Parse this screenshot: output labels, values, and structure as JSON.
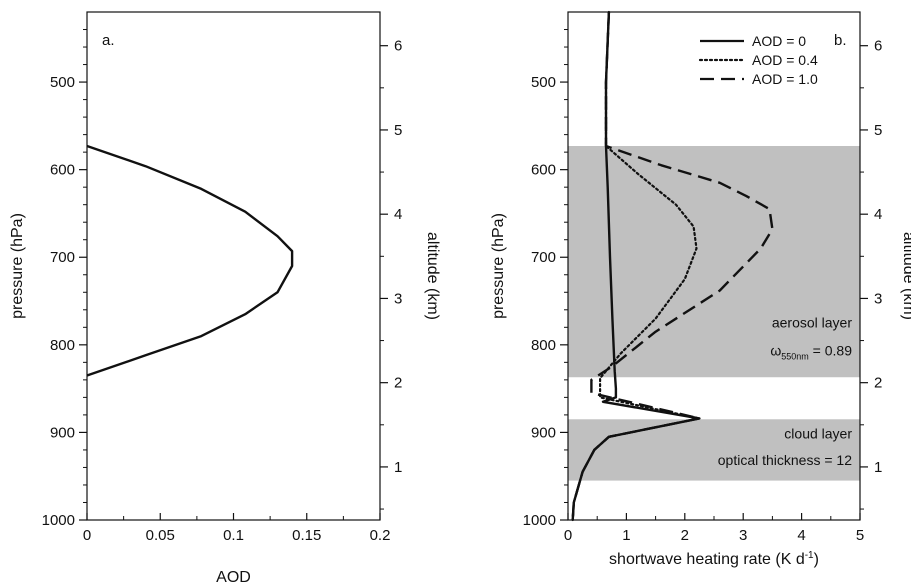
{
  "chart_data": [
    {
      "type": "line",
      "panel_label": "a.",
      "xlabel": "AOD",
      "ylabel": "pressure (hPa)",
      "y2label": "altitude (km)",
      "xlim": [
        0,
        0.2
      ],
      "ylim": [
        1000,
        420
      ],
      "y2lim": [
        0.37,
        6.4
      ],
      "xticks": [
        "0",
        "0.05",
        "0.1",
        "0.15",
        "0.2"
      ],
      "yticks": [
        "500",
        "600",
        "700",
        "800",
        "900",
        "1000"
      ],
      "y2ticks": [
        "1",
        "2",
        "3",
        "4",
        "5",
        "6"
      ],
      "series": [
        {
          "style": "solid",
          "x": [
            0,
            0.04,
            0.078,
            0.108,
            0.13,
            0.14,
            0.14,
            0.13,
            0.108,
            0.078,
            0.04,
            0
          ],
          "y": [
            573,
            596,
            622,
            648,
            676,
            693,
            710,
            740,
            765,
            790,
            812,
            835
          ]
        }
      ]
    },
    {
      "type": "line",
      "panel_label": "b.",
      "xlabel": "shortwave heating rate (K d",
      "xlabel_sup": "-1",
      "xlabel_end": ")",
      "ylabel": "pressure (hPa)",
      "y2label": "altitude (km)",
      "xlim": [
        0,
        5
      ],
      "ylim": [
        1000,
        420
      ],
      "y2lim": [
        0.37,
        6.4
      ],
      "xticks": [
        "0",
        "1",
        "2",
        "3",
        "4",
        "5"
      ],
      "yticks": [
        "500",
        "600",
        "700",
        "800",
        "900",
        "1000"
      ],
      "y2ticks": [
        "1",
        "2",
        "3",
        "4",
        "5",
        "6"
      ],
      "shaded_regions": [
        {
          "name": "aerosol layer",
          "y_range": [
            573,
            837
          ],
          "color": "#c0c0c0"
        },
        {
          "name": "cloud layer",
          "y_range": [
            885,
            955
          ],
          "color": "#c0c0c0"
        }
      ],
      "annotations": [
        {
          "text": "aerosol layer"
        },
        {
          "text": "ω",
          "sub": "550nm",
          "after": " = 0.89"
        },
        {
          "text": "cloud layer"
        },
        {
          "text": "optical thickness = 12"
        }
      ],
      "legend_position": "top-right",
      "series": [
        {
          "name": "AOD = 0",
          "style": "solid",
          "x": [
            0.7,
            0.65,
            0.65,
            0.68,
            0.72,
            0.76,
            0.8,
            0.82,
            0.82,
            0.6,
            2.25,
            0.7,
            0.45,
            0.25,
            0.1,
            0.08
          ],
          "y": [
            420,
            500,
            573,
            620,
            700,
            770,
            830,
            850,
            860,
            865,
            884,
            905,
            920,
            945,
            980,
            1000
          ]
        },
        {
          "name": "AOD = 0.4",
          "style": "dotted",
          "x": [
            0.7,
            0.65,
            0.65,
            1.2,
            1.85,
            2.15,
            2.2,
            2.0,
            1.5,
            0.9,
            0.55,
            0.55,
            2.25,
            0.7,
            0.45,
            0.25,
            0.1,
            0.08
          ],
          "y": [
            420,
            500,
            573,
            605,
            640,
            665,
            690,
            725,
            770,
            810,
            838,
            860,
            884,
            905,
            920,
            945,
            980,
            1000
          ]
        },
        {
          "name": "AOD = 1.0",
          "style": "dashed",
          "x": [
            0.7,
            0.65,
            0.65,
            1.6,
            2.6,
            3.05,
            3.45,
            3.5,
            3.3,
            2.6,
            1.5,
            0.75,
            0.4,
            0.4,
            2.25,
            0.7,
            0.45,
            0.25,
            0.1,
            0.08
          ],
          "y": [
            420,
            500,
            573,
            595,
            615,
            630,
            645,
            668,
            690,
            738,
            785,
            825,
            840,
            855,
            884,
            905,
            920,
            945,
            980,
            1000
          ]
        }
      ]
    }
  ]
}
